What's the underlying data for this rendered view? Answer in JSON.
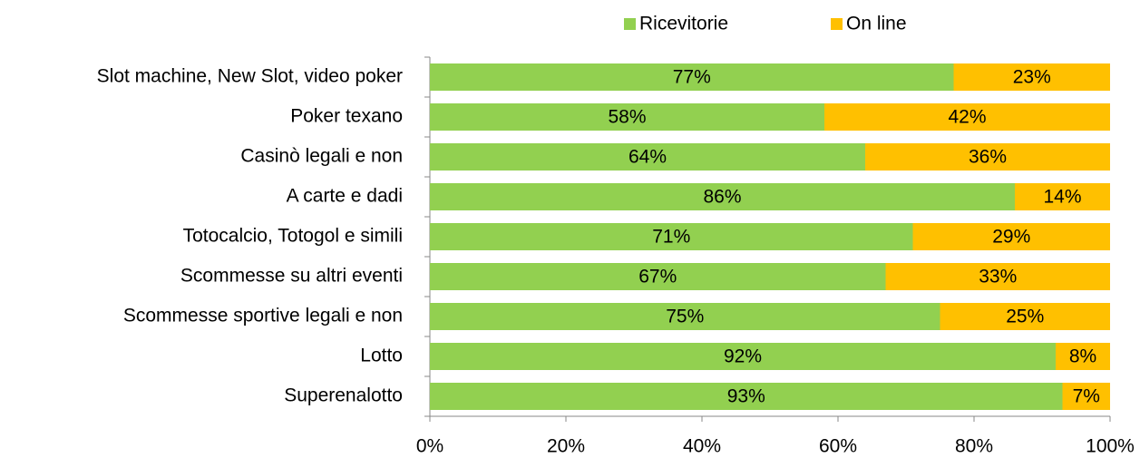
{
  "chart_data": {
    "type": "stacked-barh",
    "categories": [
      "Slot machine, New Slot, video poker",
      "Poker texano",
      "Casinò legali e non",
      "A carte e dadi",
      "Totocalcio, Totogol e simili",
      "Scommesse su altri eventi",
      "Scommesse sportive legali e non",
      "Lotto",
      "Superenalotto"
    ],
    "series": [
      {
        "name": "Ricevitorie",
        "color": "#92d050",
        "values": [
          77,
          58,
          64,
          86,
          71,
          67,
          75,
          92,
          93
        ],
        "value_labels": [
          "77%",
          "58%",
          "64%",
          "86%",
          "71%",
          "67%",
          "75%",
          "92%",
          "93%"
        ]
      },
      {
        "name": "On line",
        "color": "#ffc000",
        "values": [
          23,
          42,
          36,
          14,
          29,
          33,
          25,
          8,
          7
        ],
        "value_labels": [
          "23%",
          "42%",
          "36%",
          "14%",
          "29%",
          "33%",
          "25%",
          "8%",
          "7%"
        ]
      }
    ],
    "xlim": [
      0,
      100
    ],
    "xticks": [
      {
        "value": 0,
        "label": "0%"
      },
      {
        "value": 20,
        "label": "20%"
      },
      {
        "value": 40,
        "label": "40%"
      },
      {
        "value": 60,
        "label": "60%"
      },
      {
        "value": 80,
        "label": "80%"
      },
      {
        "value": 100,
        "label": "100%"
      }
    ],
    "legend": "top"
  }
}
